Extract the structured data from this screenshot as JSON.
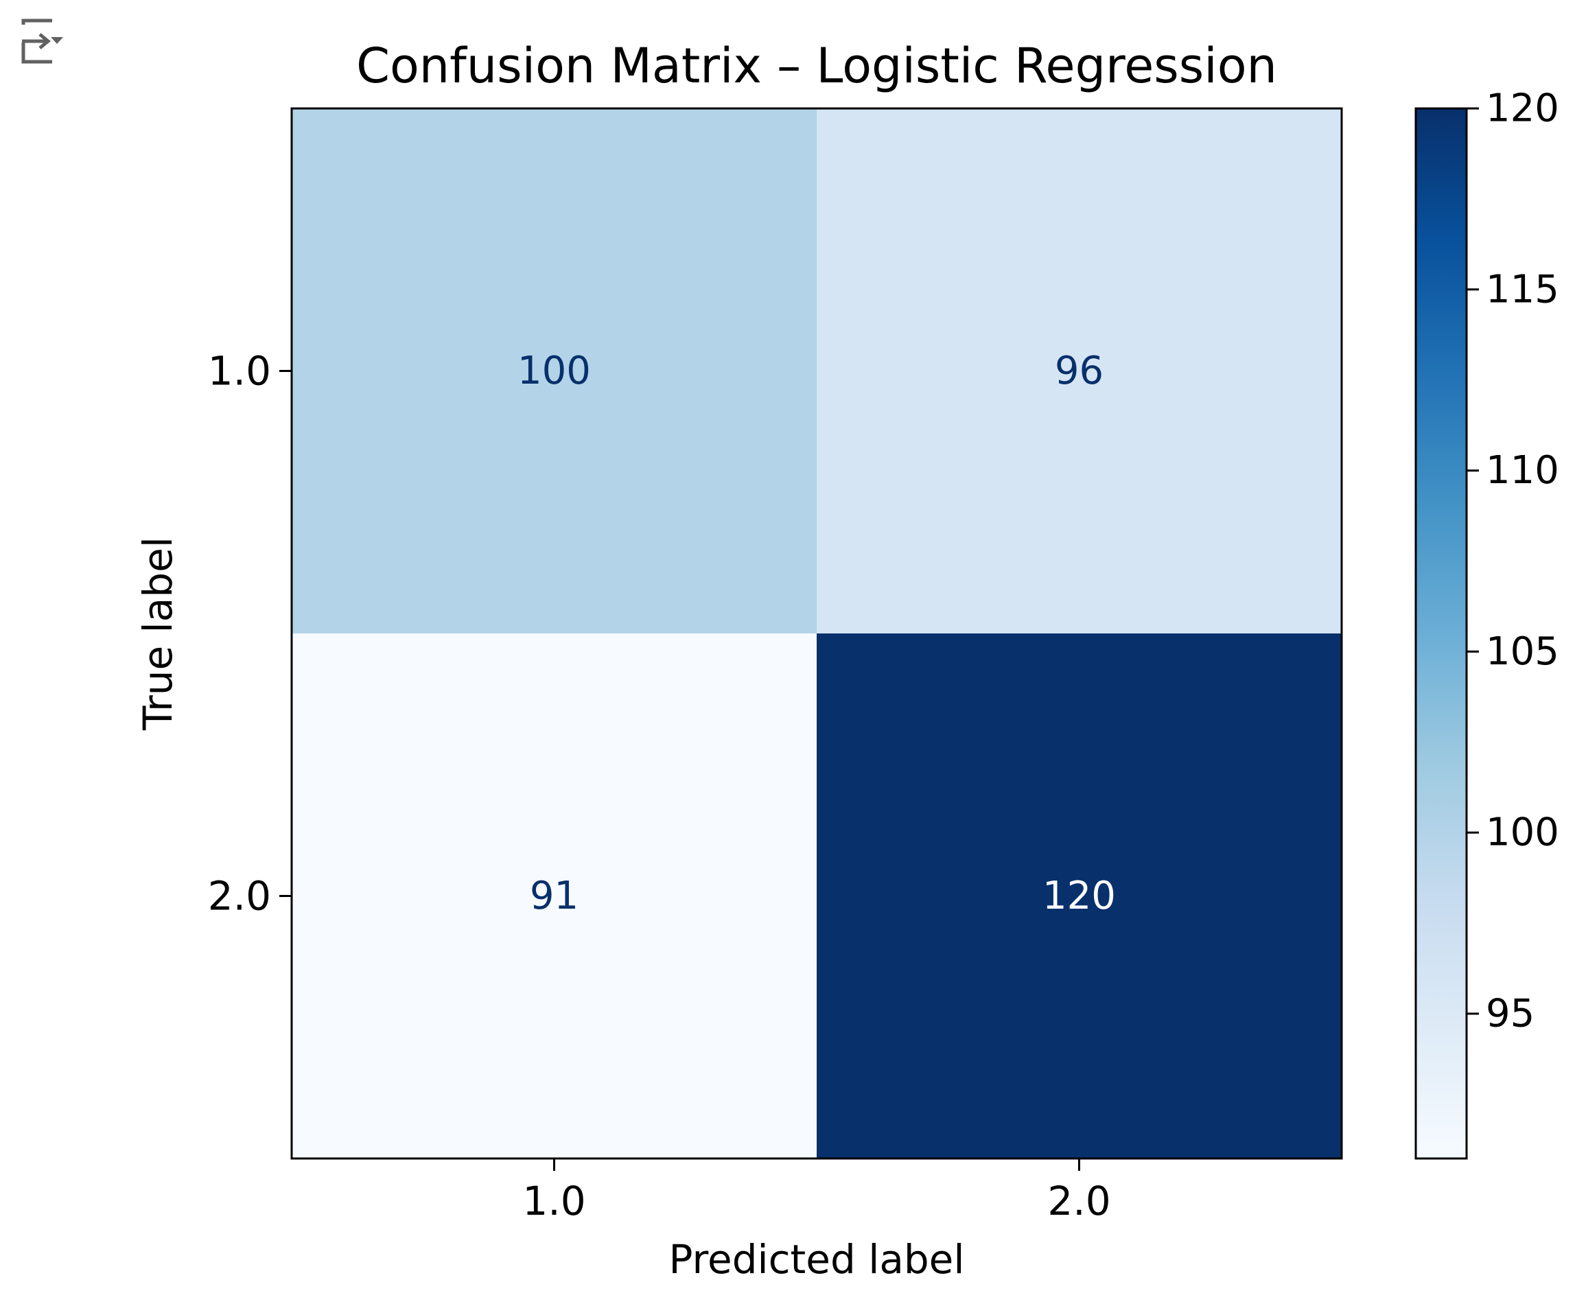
{
  "toolbar": {
    "output_icon": "output-collapse-icon"
  },
  "chart_data": {
    "type": "heatmap",
    "title": "Confusion Matrix – Logistic Regression",
    "xlabel": "Predicted label",
    "ylabel": "True label",
    "x_categories": [
      "1.0",
      "2.0"
    ],
    "y_categories": [
      "1.0",
      "2.0"
    ],
    "values": [
      [
        100,
        96
      ],
      [
        91,
        120
      ]
    ],
    "colormap": "Blues",
    "color_range": [
      91,
      120
    ],
    "colorbar_ticks": [
      95,
      100,
      105,
      110,
      115,
      120
    ],
    "grid": false,
    "text_dark_color": "#08306b",
    "text_light_color": "#ffffff"
  }
}
